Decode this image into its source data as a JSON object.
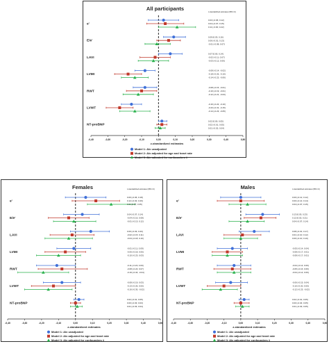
{
  "colors": {
    "model1": "#3f6fd8",
    "model2": "#c0392b",
    "model3": "#27b04a",
    "text": "#222222",
    "refline": "#111111"
  },
  "chart_data": [
    {
      "type": "forest",
      "title": "All participants",
      "xlabel": "z-standardized estimates",
      "xlim": [
        -0.4,
        0.5
      ],
      "ticks": [
        "-0,40",
        "-0,30",
        "-0,20",
        "-0,10",
        "0,00",
        "0,10",
        "0,20",
        "0,30",
        "0,40",
        "0,50"
      ],
      "est_header": "z-standardized estimates (95% CI)",
      "legend": [
        "Model 1: AIx unadjusted",
        "Model 2: AIx adjusted for age and heart rate",
        "Model 3: AIx adjusted for confounders #"
      ],
      "outcomes": [
        {
          "label": "e'",
          "points": [
            {
              "est": 0.03,
              "lo": -0.06,
              "hi": 0.12,
              "text": "0.03 [-0.06; 0.12]"
            },
            {
              "est": 0.04,
              "lo": -0.07,
              "hi": 0.15,
              "text": "0.04 [-0.07; 0.15]"
            },
            {
              "est": 0.11,
              "lo": 0.0,
              "hi": 0.22,
              "text": "0.11 [-0.00; 0.22]"
            }
          ]
        },
        {
          "label": "E/e'",
          "points": [
            {
              "est": 0.09,
              "lo": 0.03,
              "hi": 0.16,
              "text": "0.09 [0.03; 0.16]"
            },
            {
              "est": 0.06,
              "lo": -0.01,
              "hi": 0.13,
              "text": "0.06 [-0.01; 0.13]"
            },
            {
              "est": -0.01,
              "lo": -0.08,
              "hi": 0.07,
              "text": "-0.01 [-0.08; 0.07]"
            }
          ]
        },
        {
          "label": "LAVI",
          "points": [
            {
              "est": 0.07,
              "lo": 0.0,
              "hi": 0.14,
              "text": "0.07 [0.00; 0.14]"
            },
            {
              "est": -0.02,
              "lo": -0.11,
              "hi": 0.07,
              "text": "-0.02 [-0.11; 0.07]"
            },
            {
              "est": -0.03,
              "lo": -0.12,
              "hi": 0.06,
              "text": "-0.03 [-0.12; 0.06]"
            }
          ]
        },
        {
          "label": "LVMI",
          "points": [
            {
              "est": -0.08,
              "lo": -0.14,
              "hi": -0.02,
              "text": "-0.08 [-0.14; -0.02]"
            },
            {
              "est": -0.18,
              "lo": -0.26,
              "hi": -0.1,
              "text": "-0.18 [-0.26; -0.10]"
            },
            {
              "est": -0.14,
              "lo": -0.22,
              "hi": -0.06,
              "text": "-0.14 [-0.22; -0.06]"
            }
          ]
        },
        {
          "label": "RWT",
          "points": [
            {
              "est": -0.08,
              "lo": -0.15,
              "hi": -0.01,
              "text": "-0.08 [-0.15; -0.01]"
            },
            {
              "est": -0.1,
              "lo": -0.19,
              "hi": -0.01,
              "text": "-0.10 [-0.19; -0.01]"
            },
            {
              "est": -0.12,
              "lo": -0.21,
              "hi": -0.03,
              "text": "-0.12 [-0.21; -0.03]"
            }
          ]
        },
        {
          "label": "LVWT",
          "points": [
            {
              "est": -0.16,
              "lo": -0.22,
              "hi": -0.1,
              "text": "-0.16 [-0.22; -0.10]"
            },
            {
              "est": -0.23,
              "lo": -0.31,
              "hi": -0.15,
              "text": "-0.23 [-0.31; -0.15]"
            },
            {
              "est": -0.14,
              "lo": -0.23,
              "hi": -0.05,
              "text": "-0.14 [-0.23; -0.05]"
            }
          ]
        },
        {
          "label": "NT-proBNP",
          "points": [
            {
              "est": 0.02,
              "lo": 0.0,
              "hi": 0.05,
              "text": "0.02 [0.00; 0.05]"
            },
            {
              "est": 0.02,
              "lo": -0.01,
              "hi": 0.05,
              "text": "0.02 [-0.01; 0.05]"
            },
            {
              "est": 0.01,
              "lo": -0.02,
              "hi": 0.04,
              "text": "0.01 [-0.02; 0.04]"
            }
          ]
        }
      ]
    },
    {
      "type": "forest",
      "title": "Females",
      "xlabel": "z-standardized estimates",
      "xlim": [
        -0.4,
        0.5
      ],
      "ticks": [
        "-0,40",
        "-0,30",
        "-0,20",
        "-0,10",
        "0,00",
        "0,10",
        "0,20",
        "0,30",
        "0,40",
        "0,50"
      ],
      "est_header": "z-standardized estimates (95% CI)",
      "legend": [
        "Model 1: AIx unadjusted",
        "Model 2: AIx adjusted for age and heart rate",
        "Model 3: AIx adjusted for confounders #"
      ],
      "outcomes": [
        {
          "label": "e'",
          "points": [
            {
              "est": 0.06,
              "lo": -0.06,
              "hi": 0.18,
              "text": "0.06 [-0.06; 0.18]"
            },
            {
              "est": 0.12,
              "lo": -0.02,
              "hi": 0.26,
              "text": "0.12 [-0.02; 0.26]"
            },
            {
              "est": 0.21,
              "lo": 0.07,
              "hi": 0.35,
              "text": "0.21 [0.07; 0.35]"
            }
          ]
        },
        {
          "label": "E/e'",
          "points": [
            {
              "est": 0.04,
              "lo": -0.07,
              "hi": 0.14,
              "text": "0.04 [-0.07; 0.14]"
            },
            {
              "est": -0.04,
              "lo": -0.16,
              "hi": 0.08,
              "text": "-0.04 [-0.16; 0.08]"
            },
            {
              "est": -0.01,
              "lo": -0.13,
              "hi": 0.12,
              "text": "-0.01 [-0.13; 0.12]"
            }
          ]
        },
        {
          "label": "LAVI",
          "points": [
            {
              "est": 0.09,
              "lo": -0.03,
              "hi": 0.2,
              "text": "0.09 [-0.03; 0.20]"
            },
            {
              "est": -0.02,
              "lo": -0.15,
              "hi": 0.11,
              "text": "-0.02 [-0.15; 0.11]"
            },
            {
              "est": -0.04,
              "lo": -0.18,
              "hi": 0.1,
              "text": "-0.04 [-0.18; 0.10]"
            }
          ]
        },
        {
          "label": "LVMI",
          "points": [
            {
              "est": -0.01,
              "lo": -0.11,
              "hi": 0.09,
              "text": "-0.01 [-0.11; 0.09]"
            },
            {
              "est": -0.06,
              "lo": -0.18,
              "hi": 0.06,
              "text": "-0.06 [-0.18; 0.06]"
            },
            {
              "est": -0.1,
              "lo": -0.23,
              "hi": 0.03,
              "text": "-0.10 [-0.23; 0.03]"
            }
          ]
        },
        {
          "label": "RWT",
          "points": [
            {
              "est": -0.11,
              "lo": -0.23,
              "hi": 0.0,
              "text": "-0.11 [-0.23; 0.00]"
            },
            {
              "est": -0.08,
              "lo": -0.22,
              "hi": 0.07,
              "text": "-0.08 [-0.22; 0.07]"
            },
            {
              "est": -0.19,
              "lo": -0.34,
              "hi": -0.04,
              "text": "-0.19 [-0.34; -0.04]"
            }
          ]
        },
        {
          "label": "LVWT",
          "points": [
            {
              "est": -0.08,
              "lo": -0.19,
              "hi": 0.03,
              "text": "-0.08 [-0.19; 0.03]"
            },
            {
              "est": -0.13,
              "lo": -0.26,
              "hi": 0.0,
              "text": "-0.13 [-0.26; 0.00]"
            },
            {
              "est": -0.16,
              "lo": -0.3,
              "hi": -0.02,
              "text": "-0.16 [-0.30; -0.02]"
            }
          ]
        },
        {
          "label": "NT-proBNP",
          "points": [
            {
              "est": 0.02,
              "lo": -0.01,
              "hi": 0.05,
              "text": "0.02 [-0.01; 0.05]"
            },
            {
              "est": 0.0,
              "lo": -0.03,
              "hi": 0.03,
              "text": "0.00 [-0.03; 0.03]"
            },
            {
              "est": 0.01,
              "lo": -0.03,
              "hi": 0.04,
              "text": "0.01 [-0.03; 0.04]"
            }
          ]
        }
      ]
    },
    {
      "type": "forest",
      "title": "Males",
      "xlabel": "z-standardized estimates",
      "xlim": [
        -0.4,
        0.5
      ],
      "ticks": [
        "-0,40",
        "-0,30",
        "-0,20",
        "-0,10",
        "0,00",
        "0,10",
        "0,20",
        "0,30",
        "0,40",
        "0,50"
      ],
      "est_header": "z-standardized estimates (95% CI)",
      "legend": [
        "Model 1: AIx unadjusted",
        "Model 2: AIx adjusted for age and heart rate",
        "Model 3: AIx adjusted for confounders #"
      ],
      "outcomes": [
        {
          "label": "e'",
          "points": [
            {
              "est": 0.0,
              "lo": -0.12,
              "hi": 0.12,
              "text": "0.00 [-0.12; 0.12]"
            },
            {
              "est": 0.0,
              "lo": -0.14,
              "hi": 0.14,
              "text": "0.00 [-0.14; 0.14]"
            },
            {
              "est": 0.04,
              "lo": -0.07,
              "hi": 0.15,
              "text": "0.04 [-0.07; 0.15]"
            }
          ]
        },
        {
          "label": "E/e'",
          "points": [
            {
              "est": 0.13,
              "lo": 0.03,
              "hi": 0.23,
              "text": "0.13 [0.03; 0.23]"
            },
            {
              "est": 0.12,
              "lo": 0.02,
              "hi": 0.21,
              "text": "0.12 [0.02; 0.21]"
            },
            {
              "est": 0.04,
              "lo": -0.07,
              "hi": 0.14,
              "text": "0.04 [-0.07; 0.14]"
            }
          ]
        },
        {
          "label": "LAVI",
          "points": [
            {
              "est": 0.08,
              "lo": -0.01,
              "hi": 0.17,
              "text": "0.08 [-0.01; 0.17]"
            },
            {
              "est": 0.01,
              "lo": -0.1,
              "hi": 0.12,
              "text": "0.01 [-0.10; 0.12]"
            },
            {
              "est": 0.0,
              "lo": -0.1,
              "hi": 0.1,
              "text": "0.00 [-0.10; 0.10]"
            }
          ]
        },
        {
          "label": "LVMI",
          "points": [
            {
              "est": -0.05,
              "lo": -0.14,
              "hi": 0.04,
              "text": "-0.05 [-0.14; 0.04]"
            },
            {
              "est": -0.08,
              "lo": -0.17,
              "hi": 0.01,
              "text": "-0.08 [-0.17; 0.01]"
            },
            {
              "est": -0.08,
              "lo": -0.17,
              "hi": 0.01,
              "text": "-0.08 [-0.17; 0.01]"
            }
          ]
        },
        {
          "label": "RWT",
          "points": [
            {
              "est": -0.04,
              "lo": -0.14,
              "hi": 0.06,
              "text": "-0.04 [-0.14; 0.06]"
            },
            {
              "est": -0.05,
              "lo": -0.16,
              "hi": 0.06,
              "text": "-0.05 [-0.16; 0.06]"
            },
            {
              "est": -0.04,
              "lo": -0.14,
              "hi": 0.06,
              "text": "-0.04 [-0.14; 0.06]"
            }
          ]
        },
        {
          "label": "LVWT",
          "points": [
            {
              "est": -0.06,
              "lo": -0.15,
              "hi": 0.04,
              "text": "-0.06 [-0.15; 0.04]"
            },
            {
              "est": -0.1,
              "lo": -0.2,
              "hi": 0.0,
              "text": "-0.10 [-0.20; 0.00]"
            },
            {
              "est": -0.12,
              "lo": -0.23,
              "hi": -0.02,
              "text": "-0.12 [-0.23; -0.02]"
            }
          ]
        },
        {
          "label": "NT-proBNP",
          "points": [
            {
              "est": 0.02,
              "lo": -0.01,
              "hi": 0.05,
              "text": "0.02 [-0.01; 0.05]"
            },
            {
              "est": 0.0,
              "lo": -0.04,
              "hi": 0.05,
              "text": "0.00 [-0.04; 0.05]"
            },
            {
              "est": 0.01,
              "lo": -0.03,
              "hi": 0.05,
              "text": "0.01 [-0.03; 0.05]"
            }
          ]
        }
      ]
    }
  ]
}
